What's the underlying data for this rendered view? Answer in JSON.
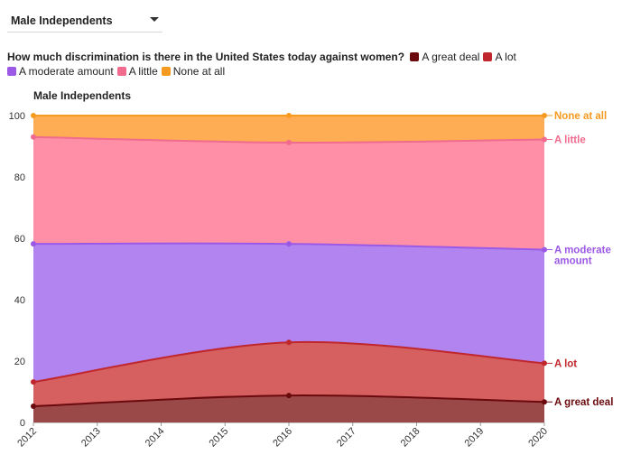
{
  "dropdown": {
    "value": "Male Independents"
  },
  "question": "How much discrimination is there in the United States today against women?",
  "legend": [
    {
      "label": "A great deal",
      "color": "#6b0a0e"
    },
    {
      "label": "A lot",
      "color": "#c0272d"
    },
    {
      "label": "A moderate amount",
      "color": "#9b59e6"
    },
    {
      "label": "A little",
      "color": "#f06b8e"
    },
    {
      "label": "None at all",
      "color": "#f79a20"
    }
  ],
  "chart_data": {
    "type": "area",
    "stacked": true,
    "title": "Male Independents",
    "x": [
      2012,
      2016,
      2020
    ],
    "x_ticks": [
      "2012",
      "2013",
      "2014",
      "2015",
      "2016",
      "2017",
      "2018",
      "2019",
      "2020"
    ],
    "y_ticks": [
      "0",
      "20",
      "40",
      "60",
      "80",
      "100"
    ],
    "ylim": [
      0,
      100
    ],
    "grid": true,
    "series": [
      {
        "name": "A great deal",
        "values": [
          5.3,
          8.8,
          6.7
        ],
        "color": "#6b0a0e",
        "fill": "#9a4848",
        "end_label": [
          "A great deal"
        ]
      },
      {
        "name": "A lot",
        "values": [
          7.9,
          17.3,
          12.6
        ],
        "color": "#c0272d",
        "fill": "#d5605f",
        "end_label": [
          "A lot"
        ]
      },
      {
        "name": "A moderate amount",
        "values": [
          45.0,
          32.1,
          37.0
        ],
        "color": "#9b59e6",
        "fill": "#b184ef",
        "end_label": [
          "A moderate",
          "amount"
        ]
      },
      {
        "name": "A little",
        "values": [
          34.8,
          33.0,
          35.9
        ],
        "color": "#f06b8e",
        "fill": "#ff8fa7",
        "end_label": [
          "A little"
        ]
      },
      {
        "name": "None at all",
        "values": [
          7.0,
          8.8,
          7.8
        ],
        "color": "#f79a20",
        "fill": "#ffad54",
        "end_label": [
          "None at all"
        ]
      }
    ]
  }
}
